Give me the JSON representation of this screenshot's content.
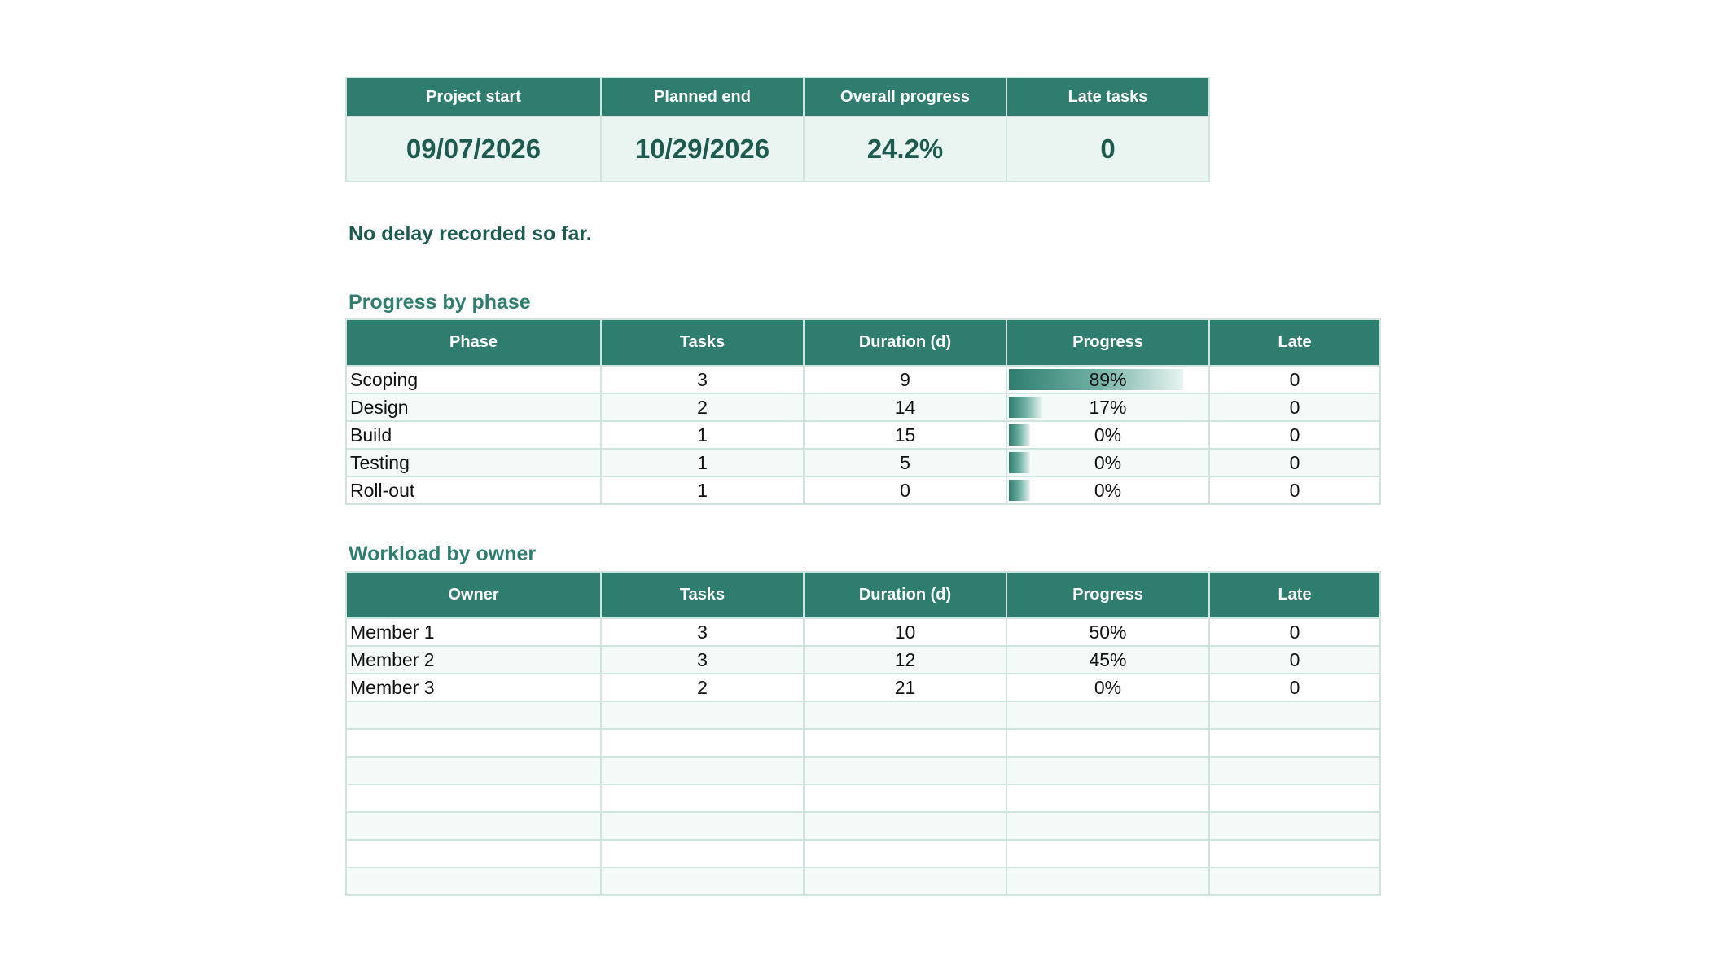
{
  "kpi": {
    "headers": [
      "Project start",
      "Planned end",
      "Overall progress",
      "Late tasks"
    ],
    "values": [
      "09/07/2026",
      "10/29/2026",
      "24.2%",
      "0"
    ]
  },
  "status_message": "No delay recorded so far.",
  "phase_section": {
    "title": "Progress by phase",
    "headers": [
      "Phase",
      "Tasks",
      "Duration (d)",
      "Progress",
      "Late"
    ],
    "rows": [
      {
        "name": "Scoping",
        "tasks": "3",
        "duration": "9",
        "progress": "89%",
        "progress_value": 0.89,
        "late": "0"
      },
      {
        "name": "Design",
        "tasks": "2",
        "duration": "14",
        "progress": "17%",
        "progress_value": 0.17,
        "late": "0"
      },
      {
        "name": "Build",
        "tasks": "1",
        "duration": "15",
        "progress": "0%",
        "progress_value": 0,
        "late": "0"
      },
      {
        "name": "Testing",
        "tasks": "1",
        "duration": "5",
        "progress": "0%",
        "progress_value": 0,
        "late": "0"
      },
      {
        "name": "Roll-out",
        "tasks": "1",
        "duration": "0",
        "progress": "0%",
        "progress_value": 0,
        "late": "0"
      }
    ]
  },
  "owner_section": {
    "title": "Workload by owner",
    "headers": [
      "Owner",
      "Tasks",
      "Duration (d)",
      "Progress",
      "Late"
    ],
    "rows": [
      {
        "name": "Member 1",
        "tasks": "3",
        "duration": "10",
        "progress": "50%",
        "late": "0"
      },
      {
        "name": "Member 2",
        "tasks": "3",
        "duration": "12",
        "progress": "45%",
        "late": "0"
      },
      {
        "name": "Member 3",
        "tasks": "2",
        "duration": "21",
        "progress": "0%",
        "late": "0"
      },
      {
        "name": "",
        "tasks": "",
        "duration": "",
        "progress": "",
        "late": ""
      },
      {
        "name": "",
        "tasks": "",
        "duration": "",
        "progress": "",
        "late": ""
      },
      {
        "name": "",
        "tasks": "",
        "duration": "",
        "progress": "",
        "late": ""
      },
      {
        "name": "",
        "tasks": "",
        "duration": "",
        "progress": "",
        "late": ""
      },
      {
        "name": "",
        "tasks": "",
        "duration": "",
        "progress": "",
        "late": ""
      },
      {
        "name": "",
        "tasks": "",
        "duration": "",
        "progress": "",
        "late": ""
      },
      {
        "name": "",
        "tasks": "",
        "duration": "",
        "progress": "",
        "late": ""
      }
    ]
  }
}
